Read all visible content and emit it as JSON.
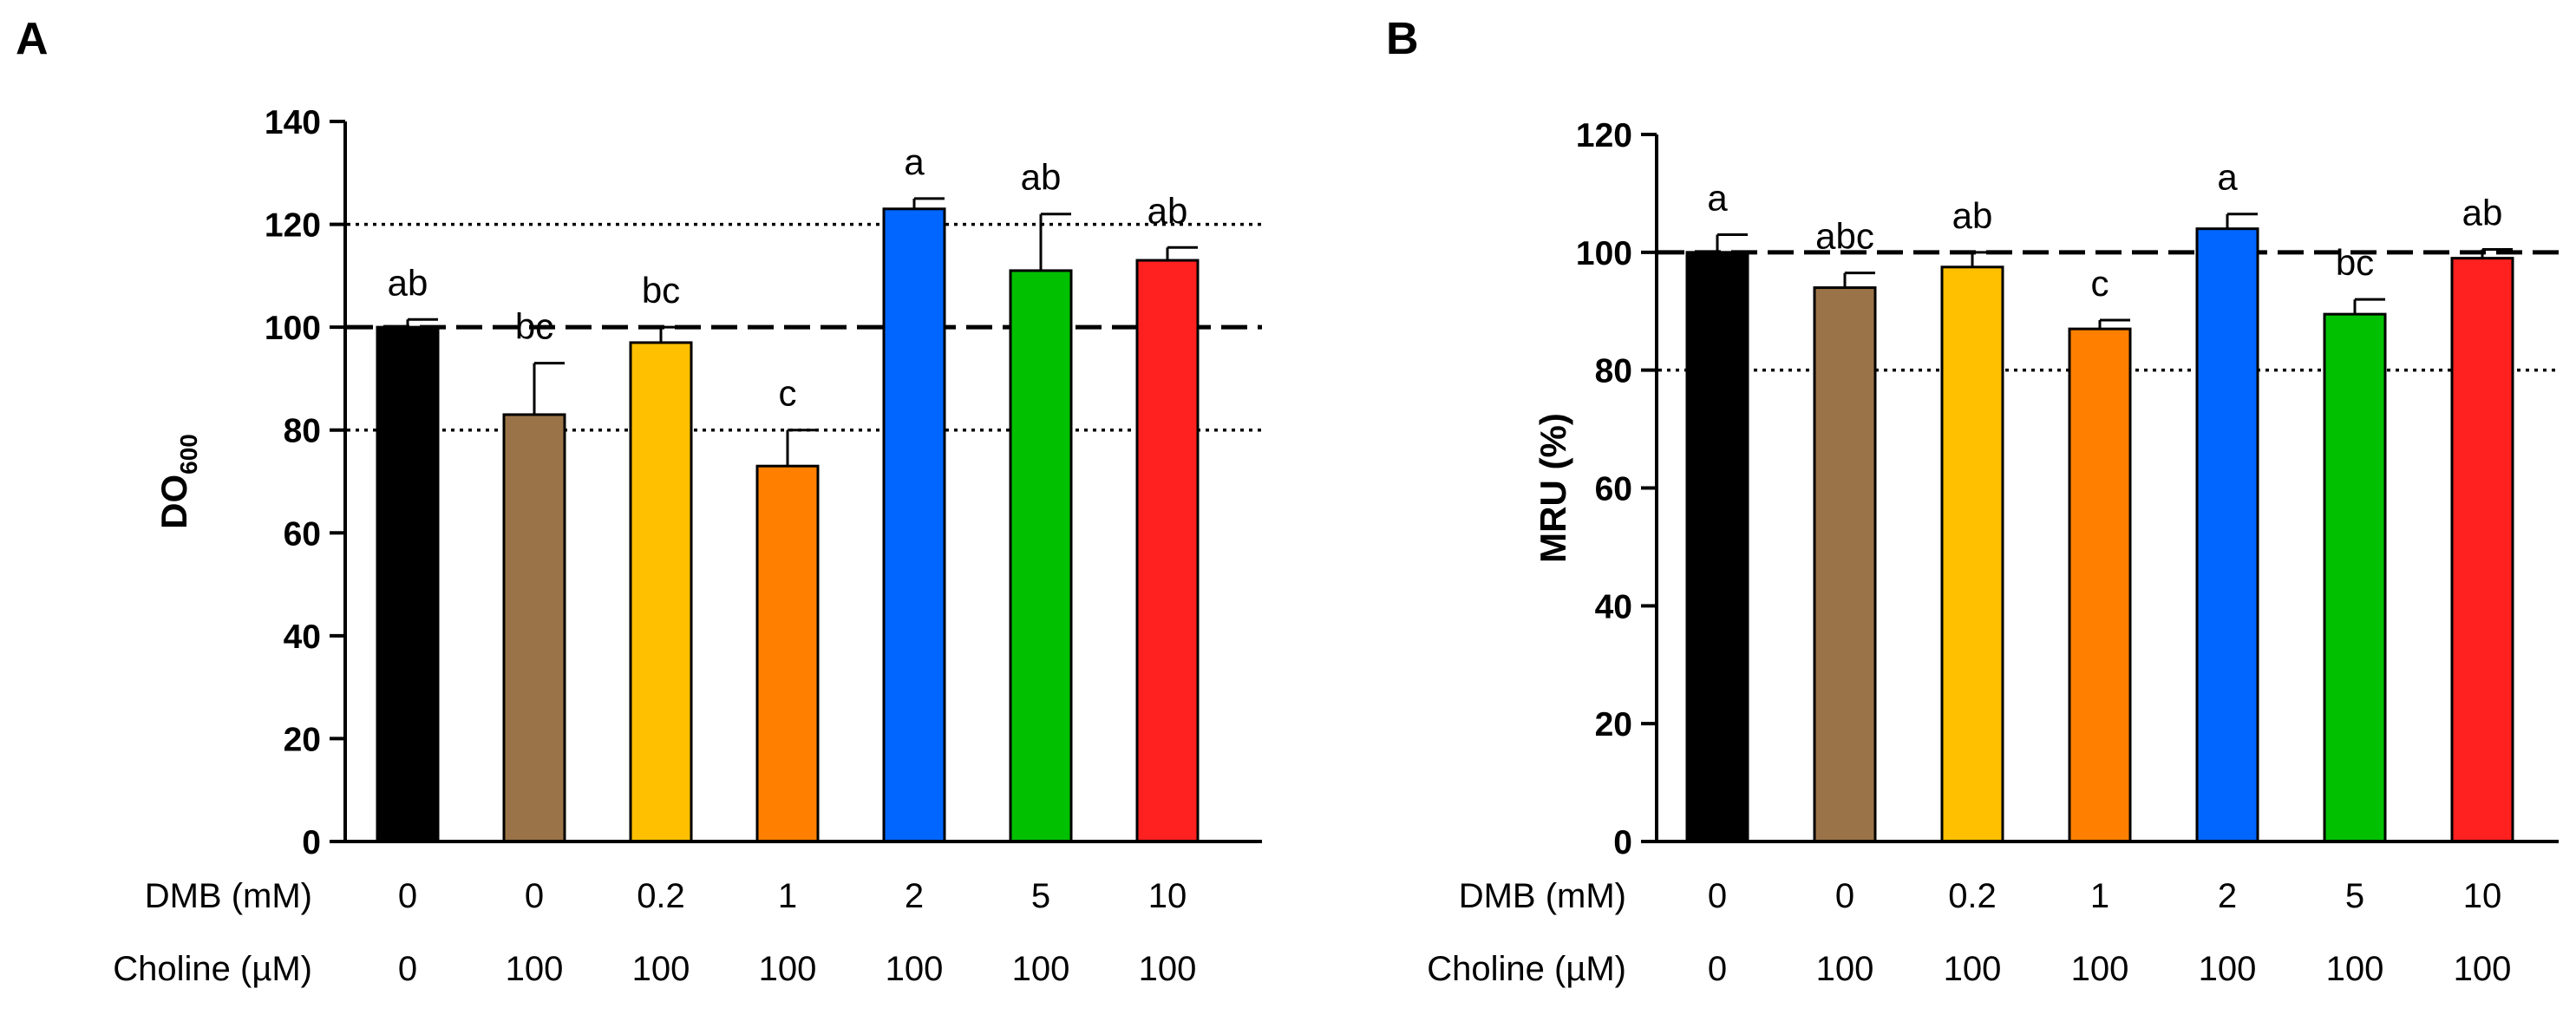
{
  "chart_data": [
    {
      "panel": "A",
      "type": "bar",
      "ylabel_main": "DO",
      "ylabel_sub": "600",
      "ylim": [
        0,
        140
      ],
      "yticks": [
        0,
        20,
        40,
        60,
        80,
        100,
        120,
        140
      ],
      "reference_lines": [
        {
          "value": 100,
          "style": "dashed"
        },
        {
          "value": 80,
          "style": "dotted"
        },
        {
          "value": 120,
          "style": "dotted"
        }
      ],
      "rows": [
        {
          "label": "DMB (mM)",
          "values": [
            "0",
            "0",
            "0.2",
            "1",
            "2",
            "5",
            "10"
          ]
        },
        {
          "label": "Choline (µM)",
          "values": [
            "0",
            "100",
            "100",
            "100",
            "100",
            "100",
            "100"
          ]
        }
      ],
      "values": [
        100,
        83,
        97,
        73,
        123,
        111,
        113
      ],
      "errors": [
        1.5,
        10,
        3,
        7,
        2,
        11,
        2.5
      ],
      "letters": [
        "ab",
        "bc",
        "bc",
        "c",
        "a",
        "ab",
        "ab"
      ],
      "colors": [
        "#000000",
        "#9b7348",
        "#ffc000",
        "#ff8000",
        "#0066ff",
        "#00c000",
        "#ff2020"
      ]
    },
    {
      "panel": "B",
      "type": "bar",
      "ylabel_main": "MRU (%)",
      "ylabel_sub": "",
      "ylim": [
        0,
        120
      ],
      "yticks": [
        0,
        20,
        40,
        60,
        80,
        100,
        120
      ],
      "reference_lines": [
        {
          "value": 100,
          "style": "dashed"
        },
        {
          "value": 80,
          "style": "dotted"
        }
      ],
      "rows": [
        {
          "label": "DMB (mM)",
          "values": [
            "0",
            "0",
            "0.2",
            "1",
            "2",
            "5",
            "10"
          ]
        },
        {
          "label": "Choline (µM)",
          "values": [
            "0",
            "100",
            "100",
            "100",
            "100",
            "100",
            "100"
          ]
        }
      ],
      "values": [
        100,
        94,
        97.5,
        87,
        104,
        89.5,
        99
      ],
      "errors": [
        3,
        2.5,
        2.5,
        1.5,
        2.5,
        2.5,
        1.5
      ],
      "letters": [
        "a",
        "abc",
        "ab",
        "c",
        "a",
        "bc",
        "ab"
      ],
      "colors": [
        "#000000",
        "#9b7348",
        "#ffc000",
        "#ff8000",
        "#0066ff",
        "#00c000",
        "#ff2020"
      ]
    }
  ]
}
